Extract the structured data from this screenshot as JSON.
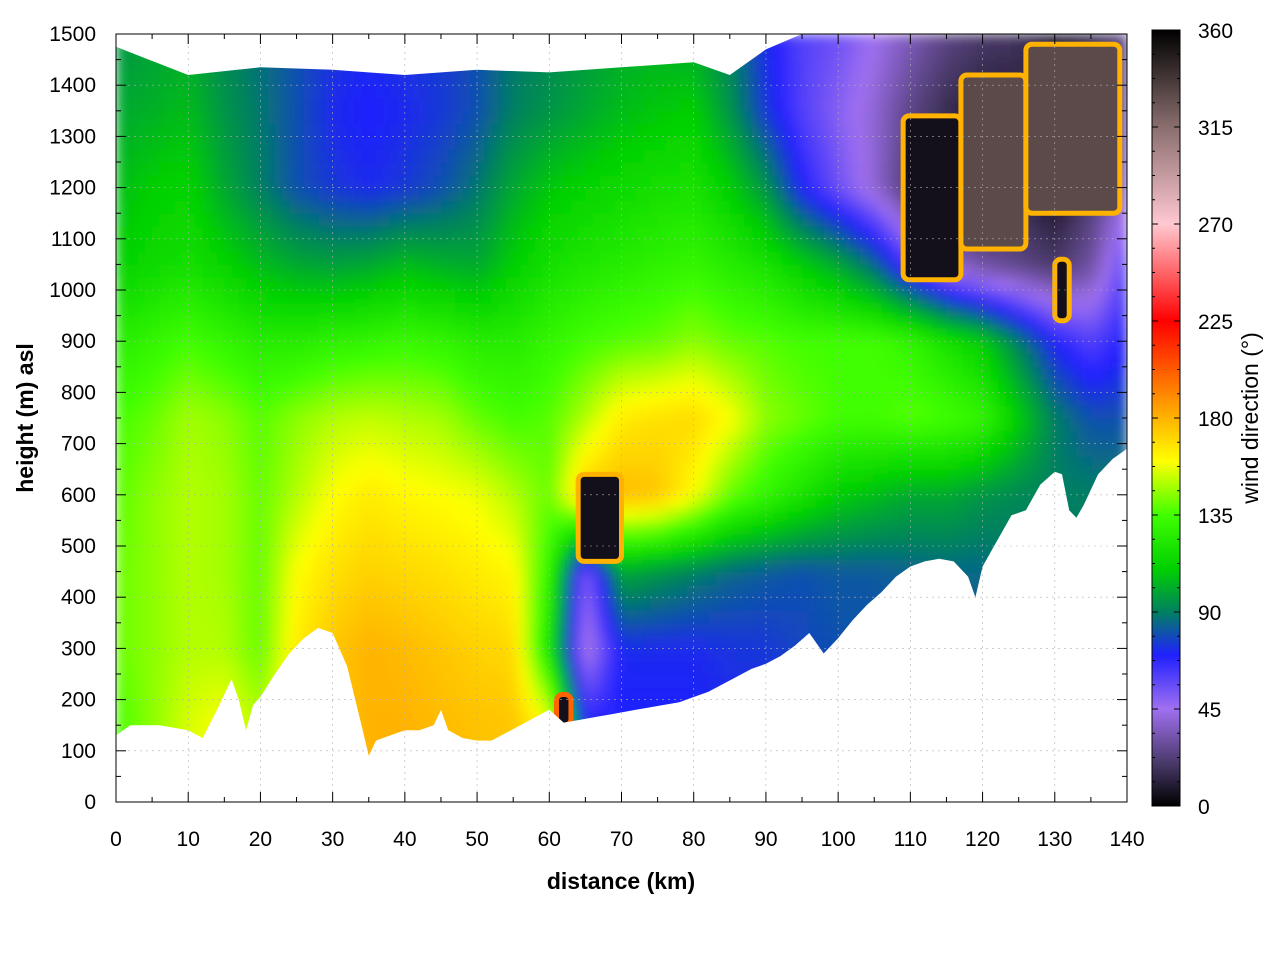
{
  "chart_data": {
    "type": "heatmap",
    "xlabel": "distance (km)",
    "ylabel": "height (m) asl",
    "colorbar_label": "wind direction (°)",
    "xlim": [
      0,
      140
    ],
    "ylim": [
      0,
      1500
    ],
    "x_ticks": [
      0,
      10,
      20,
      30,
      40,
      50,
      60,
      70,
      80,
      90,
      100,
      110,
      120,
      130,
      140
    ],
    "y_ticks": [
      0,
      100,
      200,
      300,
      400,
      500,
      600,
      700,
      800,
      900,
      1000,
      1100,
      1200,
      1300,
      1400,
      1500
    ],
    "colorbar_range": [
      0,
      360
    ],
    "colorbar_ticks": [
      0,
      45,
      90,
      135,
      180,
      225,
      270,
      315,
      360
    ],
    "grid": true,
    "colormap_stops": [
      {
        "value": 0,
        "color": "#000000"
      },
      {
        "value": 20,
        "color": "#4a3a6a"
      },
      {
        "value": 45,
        "color": "#a070f0"
      },
      {
        "value": 70,
        "color": "#2020ff"
      },
      {
        "value": 90,
        "color": "#008060"
      },
      {
        "value": 110,
        "color": "#00d000"
      },
      {
        "value": 135,
        "color": "#40ff00"
      },
      {
        "value": 160,
        "color": "#ffff00"
      },
      {
        "value": 185,
        "color": "#ffa000"
      },
      {
        "value": 225,
        "color": "#ff0000"
      },
      {
        "value": 270,
        "color": "#ffc8d0"
      },
      {
        "value": 315,
        "color": "#8a6e6e"
      },
      {
        "value": 360,
        "color": "#000000"
      }
    ],
    "terrain_profile": {
      "x": [
        0,
        2,
        4,
        6,
        8,
        10,
        12,
        14,
        16,
        17,
        18,
        19,
        20,
        22,
        24,
        26,
        28,
        30,
        32,
        34,
        35,
        36,
        38,
        40,
        42,
        44,
        45,
        46,
        48,
        50,
        52,
        54,
        56,
        58,
        60,
        62,
        64,
        66,
        68,
        70,
        72,
        74,
        76,
        78,
        80,
        82,
        84,
        86,
        88,
        90,
        92,
        94,
        96,
        98,
        100,
        102,
        104,
        106,
        108,
        110,
        112,
        114,
        116,
        118,
        119,
        120,
        122,
        124,
        126,
        128,
        130,
        131,
        132,
        133,
        134,
        136,
        138,
        140
      ],
      "y": [
        130,
        150,
        150,
        150,
        145,
        140,
        125,
        180,
        240,
        200,
        140,
        190,
        205,
        250,
        290,
        320,
        340,
        330,
        265,
        150,
        90,
        120,
        130,
        140,
        140,
        150,
        180,
        140,
        125,
        120,
        120,
        135,
        150,
        165,
        180,
        155,
        160,
        165,
        170,
        175,
        180,
        185,
        190,
        195,
        205,
        215,
        230,
        245,
        260,
        270,
        285,
        305,
        330,
        290,
        320,
        355,
        385,
        410,
        440,
        460,
        470,
        475,
        470,
        440,
        400,
        460,
        510,
        560,
        570,
        620,
        645,
        640,
        570,
        555,
        580,
        640,
        670,
        690
      ]
    },
    "model_top": {
      "x": [
        0,
        10,
        20,
        30,
        40,
        50,
        60,
        70,
        80,
        85,
        90,
        95,
        100,
        110,
        120,
        130,
        140
      ],
      "y": [
        1475,
        1420,
        1435,
        1430,
        1420,
        1430,
        1425,
        1435,
        1445,
        1420,
        1470,
        1500,
        1500,
        1500,
        1500,
        1500,
        1500
      ]
    },
    "background_field": {
      "x": [
        0,
        5,
        10,
        15,
        20,
        25,
        30,
        35,
        40,
        45,
        50,
        55,
        60,
        65,
        70,
        75,
        80,
        85,
        90,
        95,
        100,
        105,
        110,
        115,
        120,
        125,
        130,
        135,
        140
      ],
      "y": [
        150,
        300,
        450,
        600,
        750,
        900,
        1050,
        1200,
        1350,
        1500
      ],
      "values": [
        [
          135,
          145,
          155,
          160,
          150,
          170,
          175,
          180,
          180,
          178,
          176,
          175,
          160,
          70,
          70,
          70,
          70,
          72,
          72,
          75,
          78,
          78,
          80,
          80,
          80,
          80,
          80,
          80,
          80
        ],
        [
          140,
          145,
          150,
          150,
          140,
          165,
          175,
          180,
          178,
          175,
          172,
          170,
          120,
          40,
          72,
          72,
          72,
          74,
          75,
          78,
          80,
          80,
          82,
          82,
          82,
          85,
          85,
          85,
          85
        ],
        [
          140,
          145,
          150,
          148,
          140,
          160,
          168,
          172,
          170,
          168,
          165,
          162,
          130,
          50,
          100,
          95,
          90,
          85,
          82,
          80,
          82,
          82,
          84,
          85,
          85,
          88,
          88,
          88,
          88
        ],
        [
          138,
          145,
          150,
          148,
          140,
          150,
          160,
          165,
          162,
          160,
          158,
          150,
          140,
          175,
          178,
          175,
          160,
          140,
          130,
          120,
          110,
          105,
          100,
          100,
          95,
          92,
          90,
          90,
          90
        ],
        [
          135,
          140,
          148,
          145,
          138,
          145,
          150,
          152,
          150,
          148,
          140,
          135,
          138,
          150,
          165,
          168,
          170,
          160,
          145,
          140,
          135,
          135,
          138,
          135,
          130,
          110,
          90,
          80,
          80
        ],
        [
          125,
          130,
          135,
          130,
          125,
          125,
          128,
          130,
          132,
          130,
          125,
          125,
          130,
          135,
          138,
          140,
          145,
          140,
          138,
          135,
          135,
          135,
          130,
          120,
          110,
          90,
          70,
          60,
          70
        ],
        [
          110,
          115,
          118,
          112,
          105,
          100,
          98,
          100,
          105,
          102,
          100,
          110,
          118,
          122,
          125,
          128,
          130,
          125,
          120,
          110,
          100,
          85,
          60,
          40,
          30,
          25,
          20,
          30,
          60
        ],
        [
          105,
          110,
          112,
          100,
          90,
          80,
          75,
          72,
          75,
          80,
          88,
          100,
          108,
          112,
          115,
          118,
          120,
          110,
          95,
          70,
          55,
          40,
          20,
          15,
          10,
          15,
          5,
          20,
          40
        ],
        [
          100,
          102,
          105,
          95,
          88,
          80,
          72,
          70,
          72,
          75,
          80,
          90,
          95,
          100,
          105,
          108,
          110,
          95,
          75,
          60,
          50,
          40,
          25,
          15,
          10,
          10,
          5,
          15,
          30
        ],
        [
          95,
          98,
          100,
          92,
          86,
          80,
          75,
          72,
          74,
          76,
          80,
          88,
          92,
          96,
          100,
          102,
          100,
          90,
          72,
          60,
          55,
          45,
          35,
          25,
          20,
          18,
          10,
          15,
          25
        ]
      ]
    },
    "features": [
      {
        "type": "dark_cell",
        "x": [
          64,
          70
        ],
        "y": [
          470,
          640
        ],
        "value": 5,
        "ring_value": 180
      },
      {
        "type": "dark_cell",
        "x": [
          61,
          63
        ],
        "y": [
          150,
          210
        ],
        "value": 5,
        "ring_value": 200
      },
      {
        "type": "dark_cell",
        "x": [
          109,
          117
        ],
        "y": [
          1020,
          1340
        ],
        "value": 5,
        "ring_value": 180
      },
      {
        "type": "dark_cell",
        "x": [
          117,
          126
        ],
        "y": [
          1080,
          1420
        ],
        "value": 330,
        "ring_value": 180
      },
      {
        "type": "dark_cell",
        "x": [
          126,
          139
        ],
        "y": [
          1150,
          1480
        ],
        "value": 330,
        "ring_value": 180
      },
      {
        "type": "dark_cell",
        "x": [
          130,
          132
        ],
        "y": [
          940,
          1060
        ],
        "value": 5,
        "ring_value": 180
      }
    ]
  }
}
